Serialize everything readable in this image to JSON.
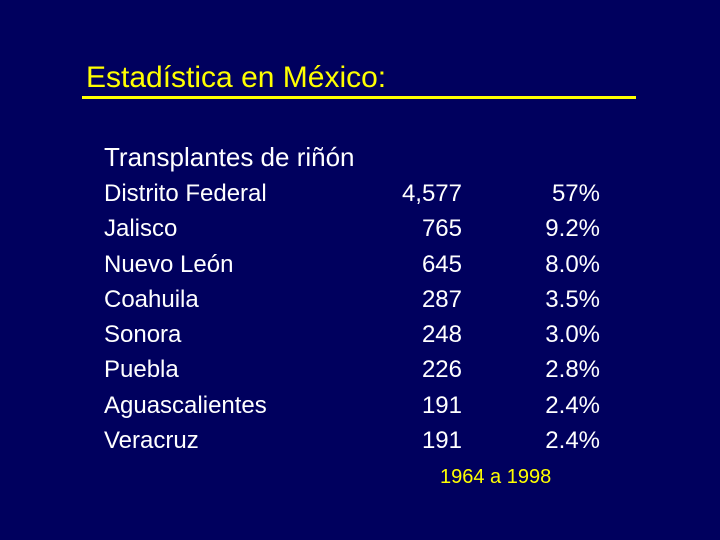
{
  "slide": {
    "title": "Estadística en México:",
    "subtitle": "Transplantes de riñón",
    "note": "1964 a 1998"
  },
  "rows": [
    {
      "state": "Distrito Federal",
      "count": "4,577",
      "pct": "57%"
    },
    {
      "state": "Jalisco",
      "count": "765",
      "pct": "9.2%"
    },
    {
      "state": "Nuevo León",
      "count": "645",
      "pct": "8.0%"
    },
    {
      "state": "Coahuila",
      "count": "287",
      "pct": "3.5%"
    },
    {
      "state": "Sonora",
      "count": "248",
      "pct": "3.0%"
    },
    {
      "state": "Puebla",
      "count": "226",
      "pct": "2.8%"
    },
    {
      "state": "Aguascalientes",
      "count": "191",
      "pct": "2.4%"
    },
    {
      "state": "Veracruz",
      "count": "191",
      "pct": "2.4%"
    }
  ],
  "colors": {
    "background": "#00005e",
    "title": "#ffff00",
    "text": "#ffffff",
    "note": "#ffff00"
  }
}
